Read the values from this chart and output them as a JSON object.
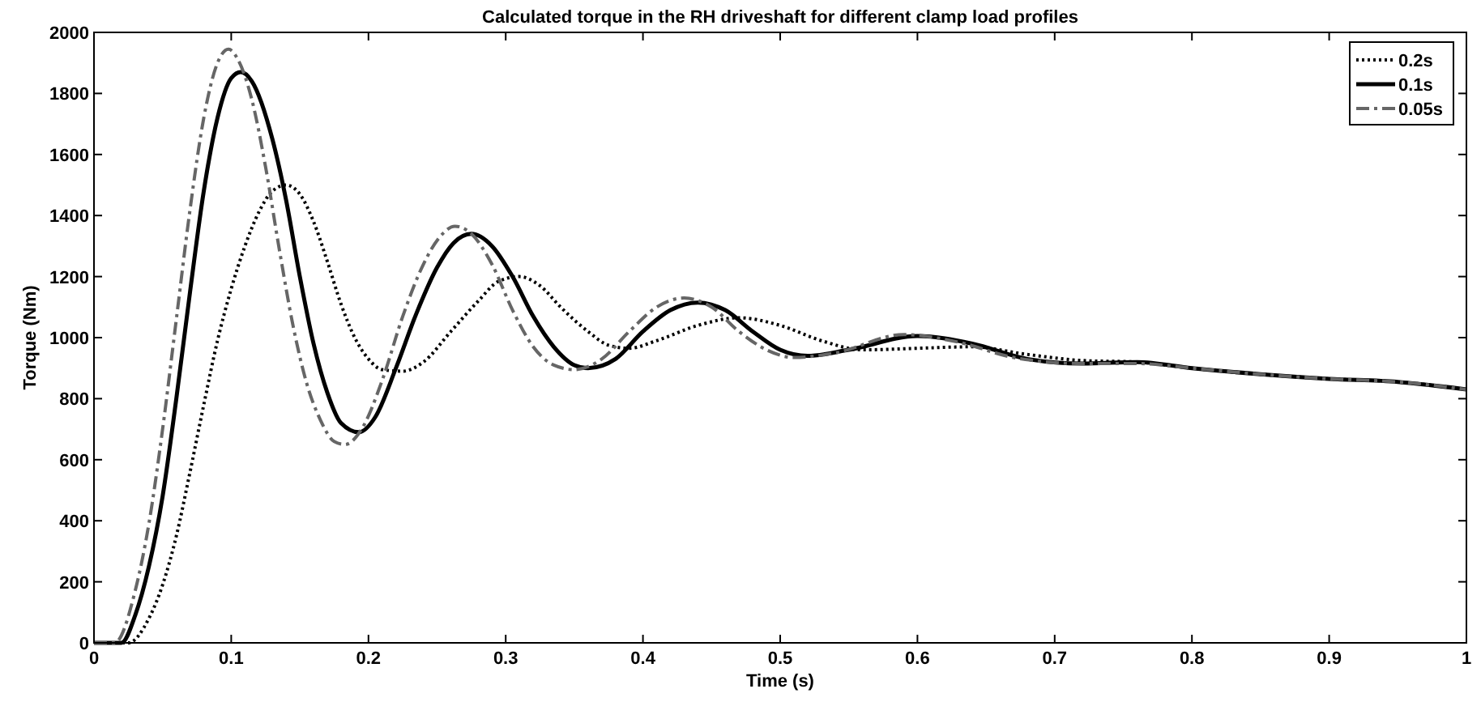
{
  "chart_data": {
    "type": "line",
    "title": "Calculated torque in the RH driveshaft for different clamp load profiles",
    "xlabel": "Time (s)",
    "ylabel": "Torque (Nm)",
    "xlim": [
      0,
      1
    ],
    "xticks": [
      0,
      0.1,
      0.2,
      0.3,
      0.4,
      0.5,
      0.6,
      0.7,
      0.8,
      0.9,
      1
    ],
    "ylim": [
      0,
      2000
    ],
    "yticks": [
      0,
      200,
      400,
      600,
      800,
      1000,
      1200,
      1400,
      1600,
      1800,
      2000
    ],
    "grid": false,
    "legend": "top right",
    "series": [
      {
        "name": "0.2s",
        "color": "#000000",
        "line_style": "dotted",
        "x": [
          0,
          0.025,
          0.04,
          0.05,
          0.06,
          0.07,
          0.08,
          0.09,
          0.1,
          0.11,
          0.12,
          0.13,
          0.14,
          0.15,
          0.16,
          0.17,
          0.18,
          0.19,
          0.2,
          0.21,
          0.225,
          0.24,
          0.26,
          0.28,
          0.295,
          0.31,
          0.325,
          0.34,
          0.36,
          0.375,
          0.39,
          0.41,
          0.44,
          0.47,
          0.5,
          0.53,
          0.56,
          0.6,
          0.64,
          0.68,
          0.72,
          0.76,
          0.8,
          0.85,
          0.9,
          0.95,
          1
        ],
        "values": [
          0,
          0,
          80,
          190,
          350,
          560,
          780,
          990,
          1160,
          1300,
          1410,
          1480,
          1500,
          1470,
          1380,
          1250,
          1110,
          1000,
          930,
          895,
          890,
          920,
          1020,
          1120,
          1185,
          1200,
          1170,
          1100,
          1020,
          975,
          965,
          990,
          1040,
          1065,
          1040,
          990,
          960,
          965,
          970,
          945,
          925,
          920,
          900,
          880,
          865,
          855,
          830
        ]
      },
      {
        "name": "0.1s",
        "color": "#000000",
        "line_style": "solid",
        "x": [
          0,
          0.02,
          0.03,
          0.04,
          0.05,
          0.06,
          0.07,
          0.08,
          0.09,
          0.1,
          0.107,
          0.115,
          0.13,
          0.14,
          0.15,
          0.16,
          0.17,
          0.18,
          0.193,
          0.205,
          0.22,
          0.235,
          0.25,
          0.262,
          0.275,
          0.29,
          0.305,
          0.32,
          0.335,
          0.35,
          0.36,
          0.38,
          0.4,
          0.42,
          0.44,
          0.46,
          0.48,
          0.5,
          0.52,
          0.55,
          0.6,
          0.64,
          0.68,
          0.72,
          0.76,
          0.8,
          0.85,
          0.9,
          0.95,
          1
        ],
        "values": [
          0,
          0,
          90,
          250,
          480,
          800,
          1150,
          1480,
          1720,
          1850,
          1870,
          1840,
          1650,
          1450,
          1200,
          980,
          820,
          720,
          690,
          740,
          900,
          1080,
          1230,
          1310,
          1340,
          1300,
          1200,
          1070,
          970,
          910,
          900,
          930,
          1020,
          1090,
          1115,
          1090,
          1020,
          960,
          940,
          960,
          1005,
          980,
          930,
          915,
          920,
          900,
          880,
          865,
          855,
          830
        ]
      },
      {
        "name": "0.05s",
        "color": "#666666",
        "line_style": "dashdot",
        "x": [
          0,
          0.015,
          0.03,
          0.04,
          0.05,
          0.06,
          0.07,
          0.08,
          0.09,
          0.098,
          0.105,
          0.115,
          0.125,
          0.135,
          0.145,
          0.155,
          0.165,
          0.175,
          0.183,
          0.195,
          0.21,
          0.225,
          0.24,
          0.252,
          0.263,
          0.275,
          0.29,
          0.305,
          0.32,
          0.335,
          0.35,
          0.37,
          0.39,
          0.41,
          0.43,
          0.45,
          0.47,
          0.49,
          0.51,
          0.54,
          0.59,
          0.63,
          0.67,
          0.72,
          0.76,
          0.8,
          0.85,
          0.9,
          0.95,
          1
        ],
        "values": [
          0,
          0,
          170,
          390,
          700,
          1060,
          1420,
          1720,
          1900,
          1945,
          1910,
          1780,
          1560,
          1290,
          1040,
          850,
          730,
          660,
          650,
          700,
          860,
          1070,
          1240,
          1330,
          1365,
          1340,
          1240,
          1090,
          970,
          910,
          895,
          930,
          1020,
          1100,
          1130,
          1100,
          1020,
          960,
          935,
          950,
          1010,
          985,
          935,
          915,
          915,
          900,
          880,
          865,
          855,
          830
        ]
      }
    ]
  }
}
